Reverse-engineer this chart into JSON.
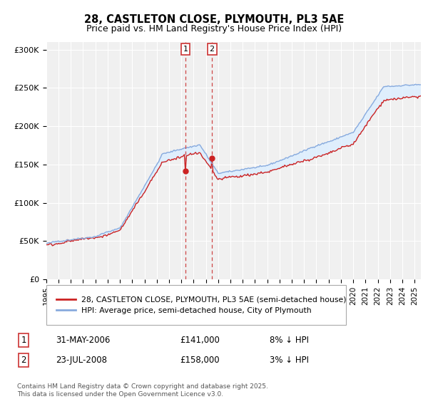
{
  "title_line1": "28, CASTLETON CLOSE, PLYMOUTH, PL3 5AE",
  "title_line2": "Price paid vs. HM Land Registry's House Price Index (HPI)",
  "ylim": [
    0,
    310000
  ],
  "yticks": [
    0,
    50000,
    100000,
    150000,
    200000,
    250000,
    300000
  ],
  "ytick_labels": [
    "£0",
    "£50K",
    "£100K",
    "£150K",
    "£200K",
    "£250K",
    "£300K"
  ],
  "background_color": "#ffffff",
  "plot_bg_color": "#f0f0f0",
  "grid_color": "#ffffff",
  "hpi_color": "#88aadd",
  "price_color": "#cc2222",
  "shade_color": "#ddeeff",
  "vline_color": "#cc3333",
  "sale1_price": 141000,
  "sale1_date": "31-MAY-2006",
  "sale1_hpi_pct": "8% ↓ HPI",
  "sale2_price": 158000,
  "sale2_date": "23-JUL-2008",
  "sale2_hpi_pct": "3% ↓ HPI",
  "legend_label1": "28, CASTLETON CLOSE, PLYMOUTH, PL3 5AE (semi-detached house)",
  "legend_label2": "HPI: Average price, semi-detached house, City of Plymouth",
  "footer": "Contains HM Land Registry data © Crown copyright and database right 2025.\nThis data is licensed under the Open Government Licence v3.0.",
  "xlim_start": 1995,
  "xlim_end": 2025.5,
  "xtick_years": [
    1995,
    1996,
    1997,
    1998,
    1999,
    2000,
    2001,
    2002,
    2003,
    2004,
    2005,
    2006,
    2007,
    2008,
    2009,
    2010,
    2011,
    2012,
    2013,
    2014,
    2015,
    2016,
    2017,
    2018,
    2019,
    2020,
    2021,
    2022,
    2023,
    2024,
    2025
  ]
}
